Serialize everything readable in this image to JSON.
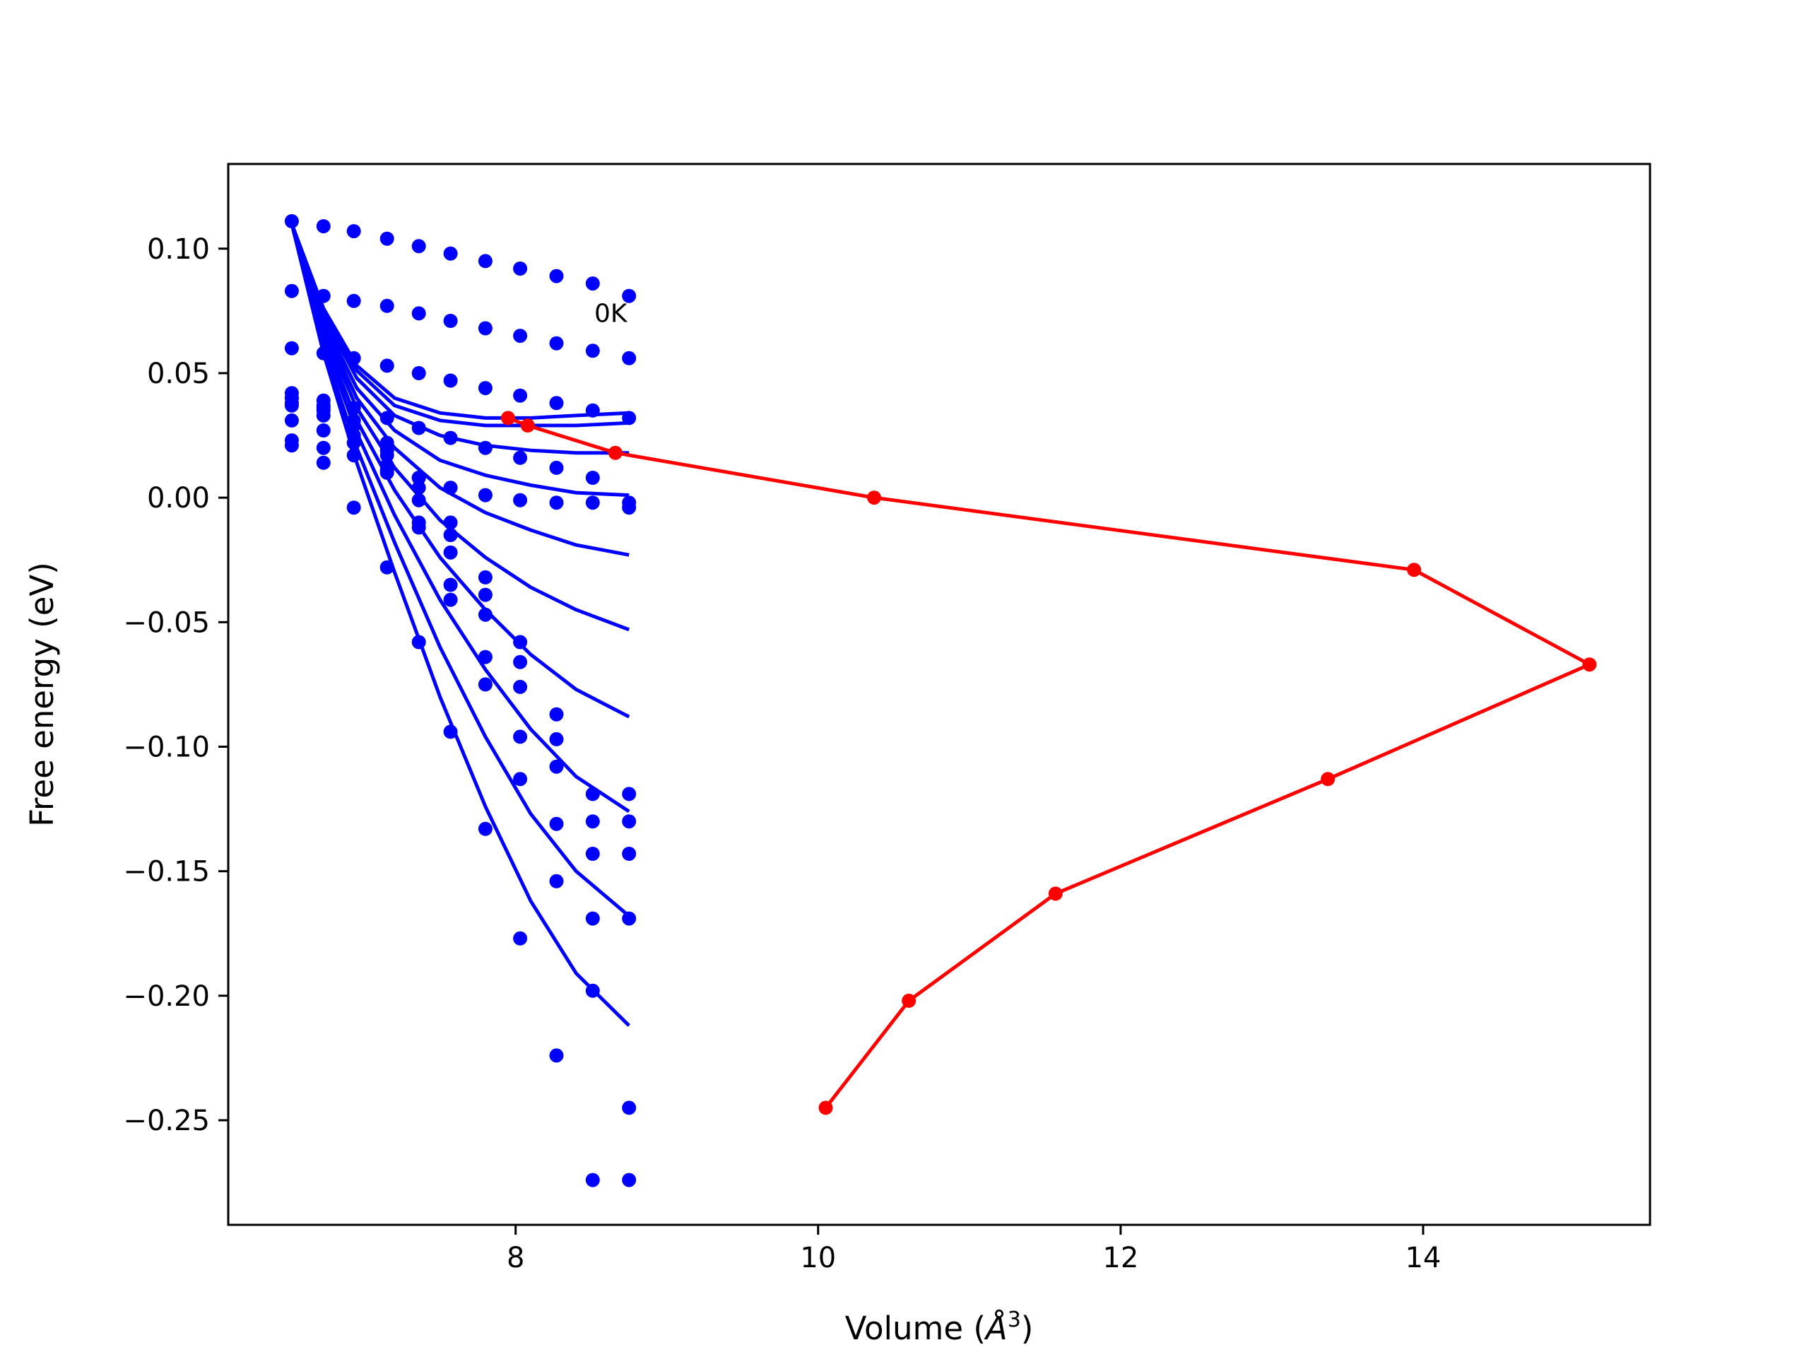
{
  "chart_data": {
    "type": "scatter",
    "title": "",
    "xlabel": "Volume (",
    "xlabel_unit": "Å",
    "xlabel_sup": "3",
    "xlabel_close": ")",
    "ylabel": "Free energy (eV)",
    "xlim": [
      6.1,
      15.5
    ],
    "ylim": [
      -0.292,
      0.134
    ],
    "xticks": [
      8,
      10,
      12,
      14
    ],
    "xtick_labels": [
      "8",
      "10",
      "12",
      "14"
    ],
    "yticks": [
      0.1,
      0.05,
      0.0,
      -0.05,
      -0.1,
      -0.15,
      -0.2,
      -0.25
    ],
    "ytick_labels": [
      "0.10",
      "0.05",
      "0.00",
      "−0.05",
      "−0.10",
      "−0.15",
      "−0.20",
      "−0.25"
    ],
    "grid": false,
    "annotation": {
      "text": "0K",
      "x": 8.52,
      "y": 0.074
    },
    "colors": {
      "points": "#0000ff",
      "fits": "#0000ff",
      "trajectory": "#ff0000"
    },
    "scatter_x": [
      6.52,
      6.73,
      6.93,
      7.15,
      7.36,
      7.57,
      7.8,
      8.03,
      8.27,
      8.51,
      8.75
    ],
    "scatter_series": [
      [
        0.111,
        0.083,
        0.06,
        0.042,
        0.023,
        0.031,
        0.038,
        0.04,
        0.04,
        0.037,
        0.021
      ],
      [
        0.109,
        0.081,
        0.058,
        0.039,
        0.02,
        0.027,
        0.035,
        0.037,
        0.036,
        0.033,
        0.014
      ],
      [
        0.107,
        0.079,
        0.056,
        0.036,
        0.017,
        0.022,
        0.025,
        0.029,
        0.031,
        0.029,
        -0.004
      ],
      [
        0.104,
        0.077,
        0.053,
        0.032,
        0.013,
        0.011,
        0.01,
        0.017,
        0.022,
        0.019,
        -0.028
      ],
      [
        0.101,
        0.074,
        0.05,
        0.028,
        0.008,
        -0.012,
        -0.01,
        -0.001,
        0.008,
        0.004,
        -0.058
      ],
      [
        0.098,
        0.071,
        0.047,
        0.024,
        0.004,
        -0.041,
        -0.035,
        -0.022,
        -0.01,
        -0.015,
        -0.094
      ],
      [
        0.095,
        0.068,
        0.044,
        0.02,
        0.001,
        -0.075,
        -0.064,
        -0.047,
        -0.032,
        -0.039,
        -0.133
      ],
      [
        0.092,
        0.065,
        0.041,
        0.016,
        -0.001,
        -0.113,
        -0.096,
        -0.076,
        -0.058,
        -0.066,
        -0.177
      ],
      [
        0.089,
        0.062,
        0.038,
        0.012,
        -0.002,
        -0.154,
        -0.131,
        -0.108,
        -0.087,
        -0.097,
        -0.224
      ],
      [
        0.086,
        0.059,
        0.035,
        0.008,
        -0.002,
        -0.198,
        -0.169,
        -0.143,
        -0.119,
        -0.13,
        -0.274
      ],
      [
        0.081,
        0.056,
        0.032,
        -0.004,
        -0.002,
        -0.245,
        -0.169,
        -0.143,
        -0.119,
        -0.13,
        -0.274
      ]
    ],
    "fit_curves": [
      {
        "x": [
          6.52,
          6.73,
          6.95,
          7.2,
          7.5,
          7.8,
          8.1,
          8.4,
          8.75
        ],
        "y": [
          0.11,
          0.076,
          0.053,
          0.04,
          0.034,
          0.032,
          0.032,
          0.033,
          0.034
        ]
      },
      {
        "x": [
          6.52,
          6.73,
          6.95,
          7.2,
          7.5,
          7.8,
          8.1,
          8.4,
          8.75
        ],
        "y": [
          0.11,
          0.075,
          0.051,
          0.037,
          0.031,
          0.029,
          0.029,
          0.029,
          0.03
        ]
      },
      {
        "x": [
          6.52,
          6.73,
          6.95,
          7.2,
          7.5,
          7.8,
          8.1,
          8.4,
          8.75
        ],
        "y": [
          0.11,
          0.073,
          0.048,
          0.033,
          0.025,
          0.021,
          0.019,
          0.018,
          0.018
        ]
      },
      {
        "x": [
          6.52,
          6.73,
          6.95,
          7.2,
          7.5,
          7.8,
          8.1,
          8.4,
          8.75
        ],
        "y": [
          0.11,
          0.071,
          0.044,
          0.027,
          0.015,
          0.009,
          0.005,
          0.002,
          0.001
        ]
      },
      {
        "x": [
          6.52,
          6.73,
          6.95,
          7.2,
          7.5,
          7.8,
          8.1,
          8.4,
          8.75
        ],
        "y": [
          0.11,
          0.069,
          0.04,
          0.02,
          0.004,
          -0.006,
          -0.013,
          -0.019,
          -0.023
        ]
      },
      {
        "x": [
          6.52,
          6.73,
          6.95,
          7.2,
          7.5,
          7.8,
          8.1,
          8.4,
          8.75
        ],
        "y": [
          0.11,
          0.067,
          0.036,
          0.012,
          -0.009,
          -0.024,
          -0.036,
          -0.045,
          -0.053
        ]
      },
      {
        "x": [
          6.52,
          6.73,
          6.95,
          7.2,
          7.5,
          7.8,
          8.1,
          8.4,
          8.75
        ],
        "y": [
          0.11,
          0.065,
          0.031,
          0.003,
          -0.024,
          -0.045,
          -0.063,
          -0.077,
          -0.088
        ]
      },
      {
        "x": [
          6.52,
          6.73,
          6.95,
          7.2,
          7.5,
          7.8,
          8.1,
          8.4,
          8.75
        ],
        "y": [
          0.11,
          0.063,
          0.026,
          -0.007,
          -0.041,
          -0.069,
          -0.093,
          -0.112,
          -0.126
        ]
      },
      {
        "x": [
          6.52,
          6.73,
          6.95,
          7.2,
          7.5,
          7.8,
          8.1,
          8.4,
          8.75
        ],
        "y": [
          0.11,
          0.06,
          0.02,
          -0.018,
          -0.06,
          -0.096,
          -0.127,
          -0.15,
          -0.168
        ]
      },
      {
        "x": [
          6.52,
          6.73,
          6.95,
          7.2,
          7.5,
          7.8,
          8.1,
          8.4,
          8.75
        ],
        "y": [
          0.11,
          0.058,
          0.014,
          -0.03,
          -0.08,
          -0.124,
          -0.162,
          -0.191,
          -0.212
        ]
      }
    ],
    "trajectory": {
      "x": [
        7.95,
        8.08,
        8.66,
        10.37,
        13.94,
        15.1,
        13.37,
        11.57,
        10.6,
        10.05
      ],
      "y": [
        0.032,
        0.029,
        0.018,
        0.0,
        -0.029,
        -0.067,
        -0.113,
        -0.159,
        -0.202,
        -0.245
      ]
    }
  }
}
